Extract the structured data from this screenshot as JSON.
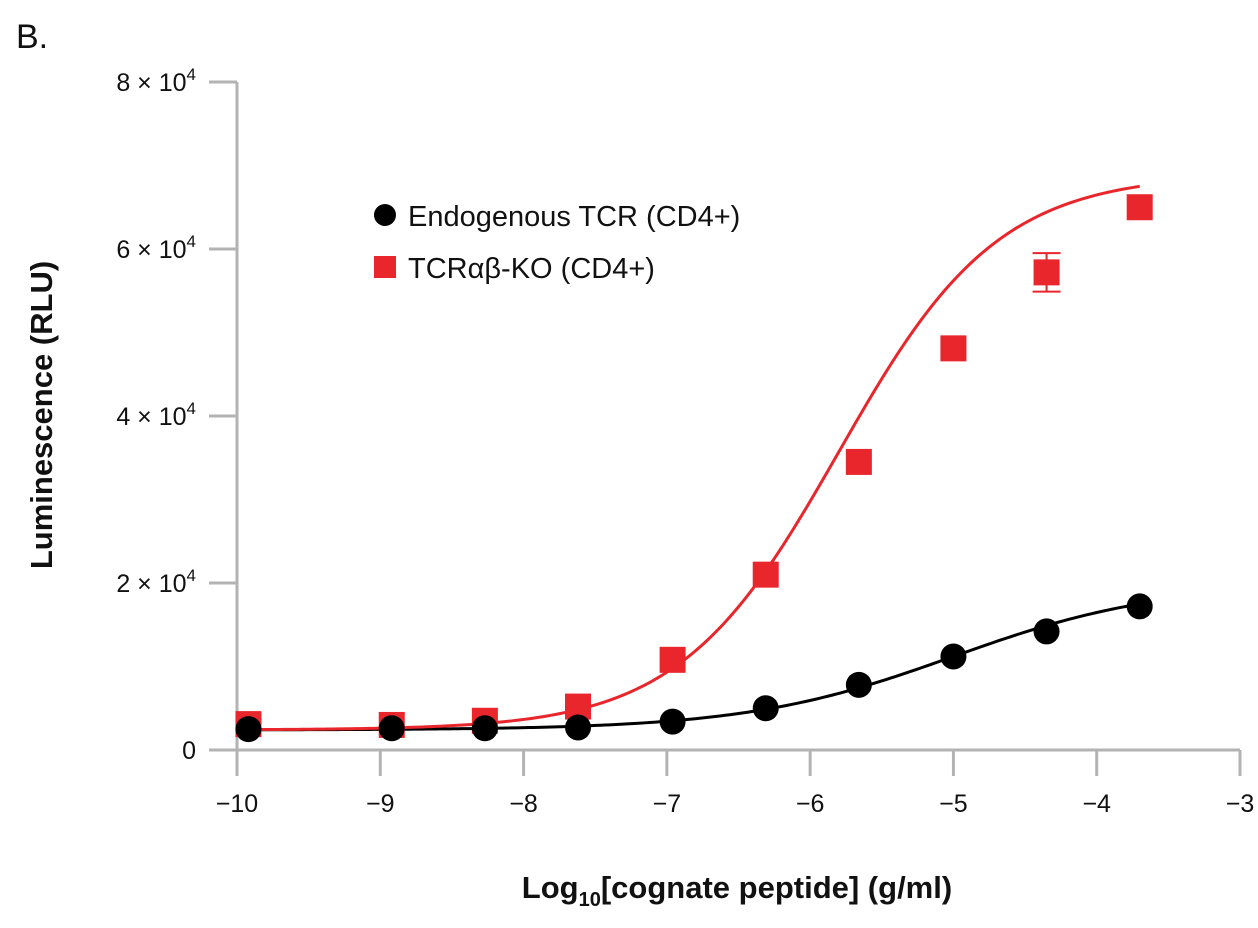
{
  "panel_label": "B.",
  "chart_data": {
    "type": "scatter",
    "x_axis": {
      "label_main": "Log",
      "label_sub": "10",
      "label_rest": "[cognate peptide] (g/ml)",
      "range": [
        -10,
        -3
      ],
      "ticks": [
        -10,
        -9,
        -8,
        -7,
        -6,
        -5,
        -4,
        -3
      ],
      "tick_labels": [
        "−10",
        "−9",
        "−8",
        "−7",
        "−6",
        "−5",
        "−4",
        "−3"
      ]
    },
    "y_axis": {
      "label": "Luminescence (RLU)",
      "range": [
        0,
        80000
      ],
      "ticks": [
        0,
        20000,
        40000,
        60000,
        80000
      ],
      "tick_labels": [
        {
          "base": "0",
          "exp": ""
        },
        {
          "base": "2 × 10",
          "exp": "4"
        },
        {
          "base": "4 × 10",
          "exp": "4"
        },
        {
          "base": "6 × 10",
          "exp": "4"
        },
        {
          "base": "8 × 10",
          "exp": "4"
        }
      ]
    },
    "grid": false,
    "legend_position": "top-left",
    "series": [
      {
        "name": "Endogenous TCR (CD4+)",
        "marker": "circle",
        "color": "#000000",
        "x": [
          -9.92,
          -8.92,
          -8.27,
          -7.62,
          -6.96,
          -6.31,
          -5.66,
          -5.0,
          -4.35,
          -3.7
        ],
        "y": [
          2500,
          2600,
          2600,
          2700,
          3400,
          5000,
          7800,
          11200,
          14200,
          17200
        ],
        "fit": {
          "bottom": 2400,
          "top": 20000,
          "logEC50": -5.0,
          "hill": 0.6
        }
      },
      {
        "name": "TCRαβ-KO (CD4+)",
        "marker": "square",
        "color": "#e8262b",
        "x": [
          -9.92,
          -8.92,
          -8.27,
          -7.62,
          -6.96,
          -6.31,
          -5.66,
          -5.0,
          -4.35,
          -3.7
        ],
        "y": [
          3100,
          3000,
          3500,
          5200,
          10800,
          21000,
          34500,
          48100,
          57200,
          65000
        ],
        "error": [
          0,
          0,
          0,
          0,
          0,
          0,
          0,
          0,
          2300,
          0
        ],
        "fit": {
          "bottom": 2400,
          "top": 69000,
          "logEC50": -5.8,
          "hill": 0.78
        }
      }
    ]
  }
}
